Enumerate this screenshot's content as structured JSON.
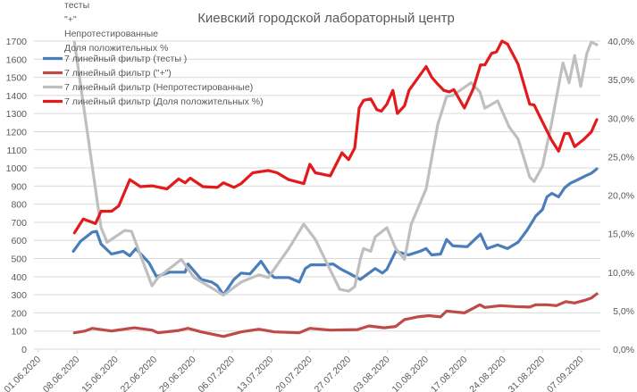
{
  "chart_data": {
    "type": "line",
    "title": "Киевский городской лабораторный центр",
    "x_unit": "days since 01.06.2020",
    "x_tick_labels": [
      "01.06.2020",
      "08.06.2020",
      "15.06.2020",
      "22.06.2020",
      "29.06.2020",
      "06.07.2020",
      "13.07.2020",
      "20.07.2020",
      "27.07.2020",
      "03.08.2020",
      "10.08.2020",
      "17.08.2020",
      "24.08.2020",
      "31.08.2020",
      "07.09.2020"
    ],
    "x_tick_step_days": 7,
    "y_left": {
      "min": 0,
      "max": 1700,
      "step": 100,
      "ticks": [
        "0",
        "100",
        "200",
        "300",
        "400",
        "500",
        "600",
        "700",
        "800",
        "900",
        "1000",
        "1100",
        "1200",
        "1300",
        "1400",
        "1500",
        "1600",
        "1700"
      ]
    },
    "y_right": {
      "min": 0,
      "max": 40,
      "step": 5,
      "ticks": [
        "0,0%",
        "5,0%",
        "10,0%",
        "15,0%",
        "20,0%",
        "25,0%",
        "30,0%",
        "35,0%",
        "40,0%"
      ]
    },
    "grid": true,
    "legend": {
      "placement": "top-left",
      "plain_entries": [
        "тесты",
        "\"+\"",
        "Непротестированные",
        "Доля положительных %"
      ]
    },
    "series": [
      {
        "name": "7 линейный фильтр (тесты )",
        "axis": "left",
        "color": "#4a7ebb",
        "points": [
          [
            6.3,
            540
          ],
          [
            7.6,
            595
          ],
          [
            9.7,
            645
          ],
          [
            10.5,
            650
          ],
          [
            11.3,
            580
          ],
          [
            13.2,
            525
          ],
          [
            15.3,
            540
          ],
          [
            16.5,
            515
          ],
          [
            17.6,
            555
          ],
          [
            20,
            475
          ],
          [
            21.3,
            400
          ],
          [
            23.7,
            425
          ],
          [
            26.5,
            425
          ],
          [
            27,
            470
          ],
          [
            29.4,
            385
          ],
          [
            31.3,
            370
          ],
          [
            32.3,
            350
          ],
          [
            33.4,
            300
          ],
          [
            35.3,
            385
          ],
          [
            36.6,
            420
          ],
          [
            38.2,
            415
          ],
          [
            40.2,
            485
          ],
          [
            41.5,
            425
          ],
          [
            42.6,
            395
          ],
          [
            45.2,
            395
          ],
          [
            47.1,
            370
          ],
          [
            48.2,
            445
          ],
          [
            49.2,
            465
          ],
          [
            51.6,
            465
          ],
          [
            53.2,
            470
          ],
          [
            54.7,
            440
          ],
          [
            56,
            420
          ],
          [
            58.1,
            385
          ],
          [
            60.8,
            445
          ],
          [
            62.1,
            420
          ],
          [
            62.9,
            440
          ],
          [
            64.5,
            540
          ],
          [
            66.8,
            520
          ],
          [
            68.9,
            540
          ],
          [
            70,
            555
          ],
          [
            71,
            520
          ],
          [
            72.6,
            525
          ],
          [
            73.7,
            605
          ],
          [
            74.8,
            570
          ],
          [
            77.4,
            565
          ],
          [
            79.8,
            635
          ],
          [
            81,
            555
          ],
          [
            82.9,
            575
          ],
          [
            84.7,
            555
          ],
          [
            86.6,
            590
          ],
          [
            88.2,
            655
          ],
          [
            89.8,
            735
          ],
          [
            91,
            770
          ],
          [
            91.8,
            840
          ],
          [
            92.7,
            860
          ],
          [
            93.9,
            840
          ],
          [
            95,
            890
          ],
          [
            96,
            915
          ],
          [
            97.4,
            935
          ],
          [
            98.7,
            955
          ],
          [
            99.8,
            970
          ],
          [
            100.8,
            995
          ]
        ]
      },
      {
        "name": "7 линейный фильтр (\"+\")",
        "axis": "left",
        "color": "#be4b48",
        "points": [
          [
            6.5,
            90
          ],
          [
            8.4,
            100
          ],
          [
            9.7,
            115
          ],
          [
            13.2,
            100
          ],
          [
            17.3,
            118
          ],
          [
            20.5,
            105
          ],
          [
            21.6,
            90
          ],
          [
            25.3,
            103
          ],
          [
            27,
            115
          ],
          [
            29.4,
            95
          ],
          [
            33.4,
            70
          ],
          [
            36.6,
            95
          ],
          [
            39.8,
            110
          ],
          [
            42.6,
            95
          ],
          [
            47.1,
            90
          ],
          [
            49,
            115
          ],
          [
            52.7,
            105
          ],
          [
            57.6,
            108
          ],
          [
            59.7,
            128
          ],
          [
            62.4,
            118
          ],
          [
            64.5,
            125
          ],
          [
            66.1,
            163
          ],
          [
            68.4,
            178
          ],
          [
            70.5,
            185
          ],
          [
            72.6,
            178
          ],
          [
            73.7,
            210
          ],
          [
            76.9,
            200
          ],
          [
            79.7,
            245
          ],
          [
            80.6,
            230
          ],
          [
            83.4,
            240
          ],
          [
            86.1,
            235
          ],
          [
            88.7,
            232
          ],
          [
            89.8,
            245
          ],
          [
            91.9,
            245
          ],
          [
            93.5,
            240
          ],
          [
            95.2,
            262
          ],
          [
            96.8,
            255
          ],
          [
            98.7,
            270
          ],
          [
            99.8,
            282
          ],
          [
            100.8,
            305
          ]
        ]
      },
      {
        "name": "7 линейный фильтр (Непротестированные)",
        "axis": "left",
        "color": "#bfbfbf",
        "points": [
          [
            6.5,
            1695
          ],
          [
            11.3,
            670
          ],
          [
            12.4,
            590
          ],
          [
            15.6,
            655
          ],
          [
            16.8,
            650
          ],
          [
            20.5,
            350
          ],
          [
            21.6,
            395
          ],
          [
            25.8,
            495
          ],
          [
            28.1,
            395
          ],
          [
            31.3,
            337
          ],
          [
            33.4,
            298
          ],
          [
            36.6,
            370
          ],
          [
            39.8,
            410
          ],
          [
            41.5,
            395
          ],
          [
            45.2,
            555
          ],
          [
            47.9,
            690
          ],
          [
            50,
            605
          ],
          [
            52.3,
            460
          ],
          [
            54.4,
            330
          ],
          [
            56,
            320
          ],
          [
            57.1,
            345
          ],
          [
            58.1,
            495
          ],
          [
            58.7,
            555
          ],
          [
            60,
            540
          ],
          [
            60.8,
            620
          ],
          [
            62.9,
            670
          ],
          [
            64.5,
            555
          ],
          [
            66.1,
            495
          ],
          [
            67.3,
            690
          ],
          [
            70,
            885
          ],
          [
            72.1,
            1240
          ],
          [
            73.7,
            1395
          ],
          [
            74.8,
            1400
          ],
          [
            78.1,
            1470
          ],
          [
            79.7,
            1420
          ],
          [
            80.6,
            1330
          ],
          [
            82.9,
            1370
          ],
          [
            85,
            1225
          ],
          [
            86.6,
            1160
          ],
          [
            88.7,
            950
          ],
          [
            89.5,
            925
          ],
          [
            91,
            1010
          ],
          [
            92.6,
            1240
          ],
          [
            94.7,
            1580
          ],
          [
            95.8,
            1470
          ],
          [
            96.8,
            1620
          ],
          [
            97.9,
            1450
          ],
          [
            99,
            1630
          ],
          [
            99.8,
            1695
          ],
          [
            100.8,
            1680
          ]
        ]
      },
      {
        "name": "7 линейный фильтр (Доля положительных %)",
        "axis": "right",
        "color": "#e31a1c",
        "points": [
          [
            6.5,
            15.1
          ],
          [
            8.1,
            16.9
          ],
          [
            10.3,
            16.3
          ],
          [
            11.3,
            17.9
          ],
          [
            13.2,
            17.9
          ],
          [
            14.5,
            18.6
          ],
          [
            16.5,
            22.0
          ],
          [
            18.4,
            21.1
          ],
          [
            20.5,
            21.2
          ],
          [
            23.2,
            20.8
          ],
          [
            25.3,
            22.1
          ],
          [
            26.5,
            21.6
          ],
          [
            27.4,
            22.2
          ],
          [
            29.7,
            21.1
          ],
          [
            32.3,
            21.0
          ],
          [
            33.4,
            21.6
          ],
          [
            35.3,
            21.0
          ],
          [
            36.6,
            21.5
          ],
          [
            38.7,
            22.9
          ],
          [
            41.5,
            23.2
          ],
          [
            43.1,
            22.9
          ],
          [
            45.2,
            22.0
          ],
          [
            47.9,
            21.5
          ],
          [
            49,
            24.0
          ],
          [
            50,
            22.9
          ],
          [
            52.7,
            22.5
          ],
          [
            54.8,
            25.5
          ],
          [
            56,
            24.6
          ],
          [
            57.1,
            26.1
          ],
          [
            57.9,
            31.3
          ],
          [
            58.7,
            32.3
          ],
          [
            60,
            32.5
          ],
          [
            61.1,
            31.1
          ],
          [
            61.9,
            30.9
          ],
          [
            62.9,
            31.8
          ],
          [
            64,
            33.6
          ],
          [
            64.8,
            30.6
          ],
          [
            66.1,
            31.6
          ],
          [
            66.9,
            33.6
          ],
          [
            70,
            36.7
          ],
          [
            71,
            35.3
          ],
          [
            72.1,
            34.4
          ],
          [
            73.2,
            33.6
          ],
          [
            74.2,
            33.4
          ],
          [
            75,
            33.7
          ],
          [
            76.9,
            31.3
          ],
          [
            78.5,
            33.8
          ],
          [
            79.8,
            36.9
          ],
          [
            80.6,
            36.9
          ],
          [
            81.8,
            38.4
          ],
          [
            82.7,
            38.6
          ],
          [
            83.7,
            40.0
          ],
          [
            84.7,
            39.6
          ],
          [
            86.6,
            37.0
          ],
          [
            88.7,
            31.8
          ],
          [
            89.5,
            31.7
          ],
          [
            91,
            29.5
          ],
          [
            92.6,
            27.2
          ],
          [
            93.9,
            25.7
          ],
          [
            95,
            28.0
          ],
          [
            95.8,
            28.0
          ],
          [
            96.8,
            26.3
          ],
          [
            98.4,
            27.2
          ],
          [
            99.8,
            28.2
          ],
          [
            100.8,
            29.8
          ]
        ]
      }
    ]
  }
}
